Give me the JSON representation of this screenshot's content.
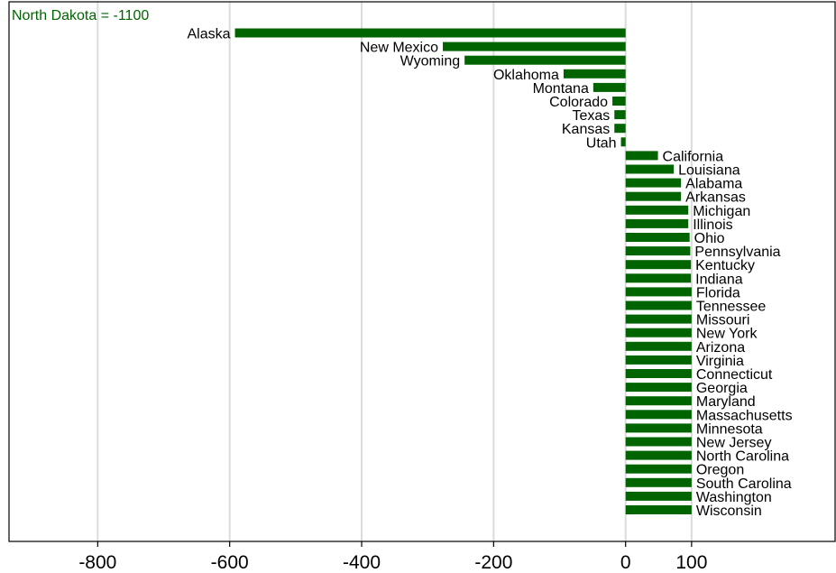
{
  "chart_data": {
    "type": "bar",
    "orientation": "horizontal",
    "annotation": "North Dakota = -1100",
    "xlim": [
      -930,
      320
    ],
    "xticks": [
      -800,
      -600,
      -400,
      -200,
      0,
      100
    ],
    "xtick_labels": [
      "-800",
      "-600",
      "-400",
      "-200",
      "0",
      "100"
    ],
    "grid": true,
    "categories": [
      "Alaska",
      "New Mexico",
      "Wyoming",
      "Oklahoma",
      "Montana",
      "Colorado",
      "Texas",
      "Kansas",
      "Utah",
      "California",
      "Louisiana",
      "Alabama",
      "Arkansas",
      "Michigan",
      "Illinois",
      "Ohio",
      "Pennsylvania",
      "Kentucky",
      "Indiana",
      "Florida",
      "Tennessee",
      "Missouri",
      "New York",
      "Arizona",
      "Virginia",
      "Connecticut",
      "Georgia",
      "Maryland",
      "Massachusetts",
      "Minnesota",
      "New Jersey",
      "North Carolina",
      "Oregon",
      "South Carolina",
      "Washington",
      "Wisconsin"
    ],
    "values": [
      -592,
      -277,
      -244,
      -94,
      -49,
      -20,
      -17,
      -17,
      -7,
      49,
      73,
      84,
      84,
      95,
      95,
      97,
      98,
      99,
      99,
      100,
      100,
      100,
      100,
      100,
      100,
      100,
      100,
      100,
      100,
      100,
      100,
      100,
      100,
      100,
      100,
      100
    ],
    "bar_color": "#006400",
    "annotation_color": "#006400",
    "grid_color": "#dcdcdc"
  }
}
